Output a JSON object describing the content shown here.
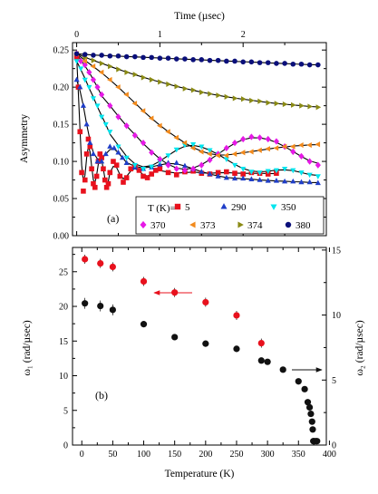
{
  "chart_data": [
    {
      "panel_label": "(a)",
      "type": "scatter",
      "xlabel": "Time (µsec)",
      "ylabel": "Asymmetry",
      "xlim": [
        -0.05,
        3.0
      ],
      "ylim": [
        0.0,
        0.26
      ],
      "xticks": [
        0,
        1,
        2
      ],
      "xtick_labels": [
        "0",
        "1",
        "2"
      ],
      "yticks": [
        0.0,
        0.05,
        0.1,
        0.15,
        0.2,
        0.25
      ],
      "ytick_labels": [
        "0.00",
        "0.05",
        "0.10",
        "0.15",
        "0.20",
        "0.25"
      ],
      "x_axis_position": "top",
      "legend_prefix": "T (K)=",
      "legend_position": "lower-right",
      "series": [
        {
          "name": "5",
          "marker": "square",
          "color": "#e8111d",
          "x": [
            0.0,
            0.02,
            0.04,
            0.06,
            0.08,
            0.1,
            0.12,
            0.14,
            0.16,
            0.18,
            0.2,
            0.22,
            0.24,
            0.26,
            0.28,
            0.3,
            0.32,
            0.34,
            0.36,
            0.38,
            0.4,
            0.44,
            0.48,
            0.52,
            0.56,
            0.6,
            0.65,
            0.7,
            0.75,
            0.8,
            0.85,
            0.9,
            0.95,
            1.0,
            1.1,
            1.2,
            1.3,
            1.4,
            1.5,
            1.6,
            1.7,
            1.8,
            1.9,
            2.0,
            2.1,
            2.2,
            2.3,
            2.4
          ],
          "y": [
            0.24,
            0.2,
            0.14,
            0.085,
            0.06,
            0.075,
            0.11,
            0.13,
            0.12,
            0.09,
            0.07,
            0.065,
            0.08,
            0.1,
            0.11,
            0.105,
            0.09,
            0.075,
            0.065,
            0.07,
            0.085,
            0.1,
            0.095,
            0.08,
            0.072,
            0.078,
            0.09,
            0.093,
            0.088,
            0.08,
            0.078,
            0.083,
            0.088,
            0.09,
            0.085,
            0.082,
            0.086,
            0.087,
            0.084,
            0.083,
            0.085,
            0.086,
            0.084,
            0.083,
            0.085,
            0.084,
            0.083,
            0.084
          ]
        },
        {
          "name": "290",
          "marker": "triangle-up",
          "color": "#1f3ec8",
          "x": [
            0.0,
            0.04,
            0.08,
            0.12,
            0.16,
            0.2,
            0.25,
            0.3,
            0.35,
            0.4,
            0.45,
            0.5,
            0.55,
            0.6,
            0.7,
            0.8,
            0.9,
            1.0,
            1.1,
            1.2,
            1.3,
            1.4,
            1.5,
            1.6,
            1.7,
            1.8,
            1.9,
            2.0,
            2.1,
            2.2,
            2.3,
            2.4,
            2.5,
            2.6,
            2.7,
            2.8,
            2.9
          ],
          "y": [
            0.21,
            0.2,
            0.175,
            0.15,
            0.125,
            0.11,
            0.1,
            0.1,
            0.11,
            0.12,
            0.118,
            0.112,
            0.105,
            0.098,
            0.092,
            0.09,
            0.092,
            0.096,
            0.098,
            0.098,
            0.094,
            0.09,
            0.086,
            0.083,
            0.08,
            0.078,
            0.077,
            0.077,
            0.076,
            0.075,
            0.074,
            0.074,
            0.073,
            0.073,
            0.072,
            0.072,
            0.071
          ]
        },
        {
          "name": "350",
          "marker": "triangle-down",
          "color": "#00e5ee",
          "x": [
            0.0,
            0.05,
            0.1,
            0.15,
            0.2,
            0.25,
            0.3,
            0.35,
            0.4,
            0.5,
            0.6,
            0.7,
            0.8,
            0.9,
            1.0,
            1.1,
            1.2,
            1.3,
            1.4,
            1.5,
            1.6,
            1.7,
            1.8,
            1.9,
            2.0,
            2.1,
            2.2,
            2.3,
            2.4,
            2.5,
            2.6,
            2.7,
            2.8,
            2.9
          ],
          "y": [
            0.235,
            0.225,
            0.21,
            0.2,
            0.185,
            0.175,
            0.16,
            0.15,
            0.14,
            0.12,
            0.105,
            0.095,
            0.09,
            0.093,
            0.1,
            0.108,
            0.116,
            0.122,
            0.123,
            0.12,
            0.115,
            0.11,
            0.103,
            0.095,
            0.09,
            0.086,
            0.085,
            0.087,
            0.088,
            0.09,
            0.088,
            0.085,
            0.082,
            0.08
          ]
        },
        {
          "name": "370",
          "marker": "diamond",
          "color": "#e619e6",
          "x": [
            0.0,
            0.05,
            0.1,
            0.15,
            0.2,
            0.25,
            0.3,
            0.4,
            0.5,
            0.6,
            0.7,
            0.8,
            0.9,
            1.0,
            1.1,
            1.2,
            1.3,
            1.4,
            1.5,
            1.6,
            1.7,
            1.8,
            1.9,
            2.0,
            2.1,
            2.2,
            2.3,
            2.4,
            2.5,
            2.6,
            2.7,
            2.8,
            2.9
          ],
          "y": [
            0.245,
            0.235,
            0.23,
            0.22,
            0.21,
            0.2,
            0.19,
            0.175,
            0.16,
            0.148,
            0.135,
            0.125,
            0.112,
            0.103,
            0.095,
            0.09,
            0.088,
            0.09,
            0.095,
            0.102,
            0.11,
            0.118,
            0.125,
            0.13,
            0.133,
            0.132,
            0.13,
            0.127,
            0.12,
            0.113,
            0.107,
            0.1,
            0.095
          ]
        },
        {
          "name": "373",
          "marker": "triangle-left",
          "color": "#f28a1c",
          "x": [
            0.0,
            0.1,
            0.2,
            0.3,
            0.4,
            0.5,
            0.6,
            0.7,
            0.8,
            0.9,
            1.0,
            1.1,
            1.2,
            1.3,
            1.4,
            1.5,
            1.6,
            1.7,
            1.8,
            1.9,
            2.0,
            2.1,
            2.2,
            2.3,
            2.4,
            2.5,
            2.6,
            2.7,
            2.8,
            2.9
          ],
          "y": [
            0.245,
            0.235,
            0.228,
            0.22,
            0.21,
            0.2,
            0.19,
            0.178,
            0.168,
            0.158,
            0.148,
            0.14,
            0.132,
            0.125,
            0.118,
            0.113,
            0.11,
            0.108,
            0.108,
            0.11,
            0.112,
            0.113,
            0.115,
            0.117,
            0.118,
            0.12,
            0.12,
            0.122,
            0.122,
            0.123
          ]
        },
        {
          "name": "374",
          "marker": "triangle-right",
          "color": "#8a8a14",
          "x": [
            0.0,
            0.1,
            0.2,
            0.3,
            0.4,
            0.5,
            0.6,
            0.7,
            0.8,
            0.9,
            1.0,
            1.1,
            1.2,
            1.3,
            1.4,
            1.5,
            1.6,
            1.7,
            1.8,
            1.9,
            2.0,
            2.1,
            2.2,
            2.3,
            2.4,
            2.5,
            2.6,
            2.7,
            2.8,
            2.9
          ],
          "y": [
            0.245,
            0.24,
            0.236,
            0.232,
            0.228,
            0.224,
            0.22,
            0.217,
            0.213,
            0.21,
            0.207,
            0.204,
            0.201,
            0.198,
            0.196,
            0.193,
            0.191,
            0.189,
            0.187,
            0.185,
            0.184,
            0.182,
            0.181,
            0.179,
            0.178,
            0.177,
            0.176,
            0.175,
            0.174,
            0.173
          ]
        },
        {
          "name": "380",
          "marker": "circle",
          "color": "#0a0f7a",
          "x": [
            0.0,
            0.1,
            0.2,
            0.3,
            0.4,
            0.5,
            0.6,
            0.7,
            0.8,
            0.9,
            1.0,
            1.1,
            1.2,
            1.3,
            1.4,
            1.5,
            1.6,
            1.7,
            1.8,
            1.9,
            2.0,
            2.1,
            2.2,
            2.3,
            2.4,
            2.5,
            2.6,
            2.7,
            2.8,
            2.9
          ],
          "y": [
            0.245,
            0.244,
            0.243,
            0.243,
            0.242,
            0.242,
            0.241,
            0.241,
            0.24,
            0.24,
            0.239,
            0.239,
            0.238,
            0.238,
            0.237,
            0.237,
            0.236,
            0.236,
            0.235,
            0.235,
            0.234,
            0.234,
            0.233,
            0.233,
            0.232,
            0.232,
            0.231,
            0.231,
            0.23,
            0.23
          ]
        }
      ]
    },
    {
      "panel_label": "(b)",
      "type": "scatter",
      "xlabel": "Temperature (K)",
      "ylabel": "ω₁ (rad/µsec)",
      "y2label": "ω₂ (rad/µsec)",
      "xlim": [
        -15,
        395
      ],
      "ylim": [
        0,
        28.5
      ],
      "y2lim": [
        0,
        15.2
      ],
      "xticks": [
        0,
        50,
        100,
        150,
        200,
        250,
        300,
        350,
        400
      ],
      "xtick_labels": [
        "0",
        "50",
        "100",
        "150",
        "200",
        "250",
        "300",
        "350",
        "400"
      ],
      "yticks": [
        0,
        5,
        10,
        15,
        20,
        25
      ],
      "ytick_labels": [
        "0",
        "5",
        "10",
        "15",
        "20",
        "25"
      ],
      "y2ticks": [
        0,
        5,
        10,
        15
      ],
      "y2tick_labels": [
        "0",
        "5",
        "10",
        "15"
      ],
      "series": [
        {
          "axis": "left",
          "marker": "circle",
          "color": "#e8111d",
          "x": [
            5,
            30,
            50,
            100,
            150,
            200,
            250,
            290
          ],
          "y": [
            26.8,
            26.2,
            25.7,
            23.6,
            22.0,
            20.6,
            18.7,
            14.7
          ]
        },
        {
          "axis": "right",
          "marker": "circle",
          "color": "#111111",
          "x": [
            5,
            30,
            50,
            100,
            150,
            200,
            250,
            290,
            300,
            325,
            350,
            360,
            365,
            368,
            370,
            372,
            373,
            374,
            375,
            378,
            380
          ],
          "y": [
            10.9,
            10.7,
            10.4,
            9.3,
            8.3,
            7.8,
            7.4,
            6.5,
            6.4,
            5.8,
            4.9,
            4.3,
            3.3,
            2.9,
            2.4,
            1.8,
            1.2,
            0.3,
            0.3,
            0.3,
            0.3
          ]
        }
      ]
    }
  ]
}
